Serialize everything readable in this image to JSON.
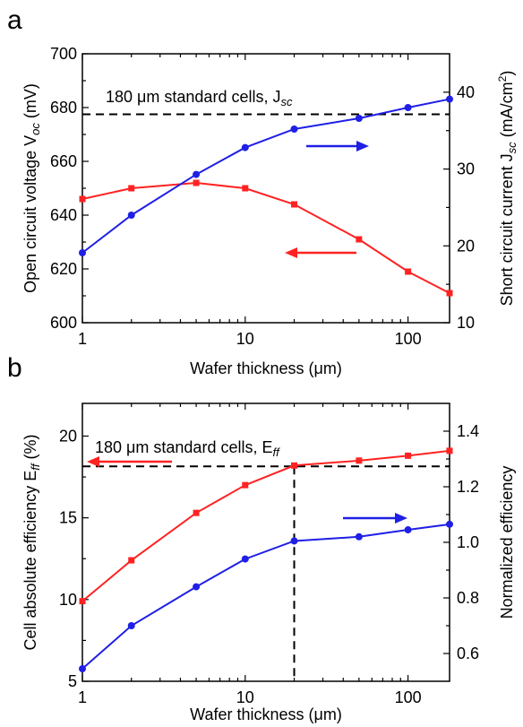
{
  "chart_data": [
    {
      "panel_letter": "a",
      "type": "line",
      "xlabel_prefix": "Wafer thickness (",
      "xlabel_unit": "μm",
      "xlabel_suffix": ")",
      "x_scale": "log",
      "xlim": [
        1,
        180
      ],
      "x_ticks": [
        1,
        10,
        100
      ],
      "x_tick_labels": [
        "1",
        "10",
        "100"
      ],
      "ylabel_left": "Open circuit voltage V",
      "ylabel_left_sub": "oc",
      "ylabel_left_unit": " (mV)",
      "ylim_left": [
        600,
        700
      ],
      "y_ticks_left": [
        "600",
        "620",
        "640",
        "660",
        "680",
        "700"
      ],
      "ylabel_right": "Short circuit current J",
      "ylabel_right_sub": "sc",
      "ylabel_right_unit": " (mA/cm",
      "ylabel_right_sup": "2",
      "ylabel_right_end": ")",
      "ylim_right": [
        10,
        45
      ],
      "y_ticks_right": [
        "10",
        "20",
        "30",
        "40"
      ],
      "reference_text": "180 μm standard cells, J",
      "reference_text_sub": "sc",
      "reference_value_left": 677.5,
      "series": [
        {
          "axis": "left",
          "color": "#ff2222",
          "marker": "square",
          "x": [
            1,
            2,
            5,
            10,
            20,
            50,
            100,
            180
          ],
          "y": [
            646,
            650,
            652,
            650,
            644,
            631,
            619,
            611
          ]
        },
        {
          "axis": "right",
          "color": "#1f1fe6",
          "marker": "circle",
          "x": [
            1,
            2,
            5,
            10,
            20,
            50,
            100,
            180
          ],
          "y": [
            19.1,
            24.0,
            29.3,
            32.8,
            35.2,
            36.6,
            38.0,
            39.1
          ]
        }
      ],
      "arrows": [
        {
          "color": "#ff2222",
          "direction": "left"
        },
        {
          "color": "#1f1fe6",
          "direction": "right"
        }
      ]
    },
    {
      "panel_letter": "b",
      "type": "line",
      "xlabel_prefix": "Wafer thickness (",
      "xlabel_unit": "μm",
      "xlabel_suffix": ")",
      "x_scale": "log",
      "xlim": [
        1,
        180
      ],
      "x_ticks": [
        1,
        10,
        100
      ],
      "x_tick_labels": [
        "1",
        "10",
        "100"
      ],
      "ylabel_left": "Cell absolute efficiency E",
      "ylabel_left_sub": "ff",
      "ylabel_left_unit": " (%)",
      "ylim_left": [
        5,
        22
      ],
      "y_ticks_left": [
        "5",
        "10",
        "15",
        "20"
      ],
      "ylabel_right": "Normalized efficiency",
      "ylim_right": [
        0.5,
        1.5
      ],
      "y_ticks_right": [
        "0.6",
        "0.8",
        "1.0",
        "1.2",
        "1.4"
      ],
      "reference_text": "180 μm standard cells, E",
      "reference_text_sub": "ff",
      "reference_value_left": 18.15,
      "reference_vertical_x": 20,
      "series": [
        {
          "axis": "left",
          "color": "#ff2222",
          "marker": "square",
          "x": [
            1,
            2,
            5,
            10,
            20,
            50,
            100,
            180
          ],
          "y": [
            9.9,
            12.4,
            15.3,
            17.0,
            18.2,
            18.5,
            18.8,
            19.1
          ]
        },
        {
          "axis": "right",
          "color": "#1f1fe6",
          "marker": "circle",
          "x": [
            1,
            2,
            5,
            10,
            20,
            50,
            100,
            180
          ],
          "y": [
            0.545,
            0.7,
            0.84,
            0.94,
            1.005,
            1.02,
            1.045,
            1.065
          ]
        }
      ],
      "arrows": [
        {
          "color": "#ff2222",
          "direction": "left"
        },
        {
          "color": "#1f1fe6",
          "direction": "right"
        }
      ]
    }
  ]
}
